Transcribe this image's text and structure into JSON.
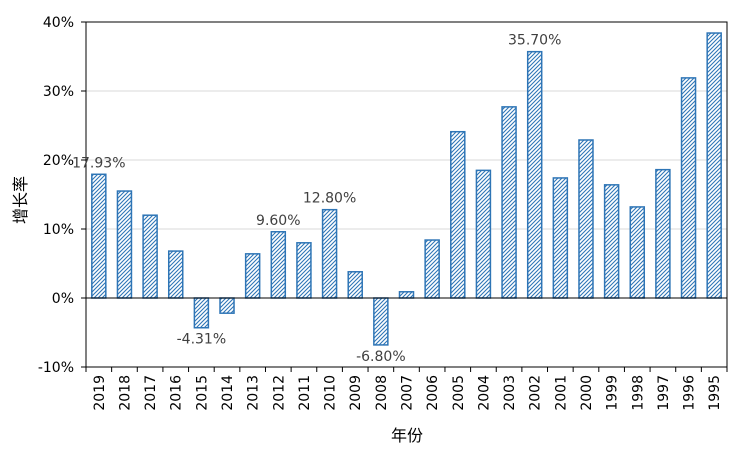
{
  "chart_data": {
    "type": "bar",
    "xlabel": "年份",
    "ylabel": "增长率",
    "ylim": [
      -10,
      40
    ],
    "yticks": [
      -10,
      0,
      10,
      20,
      30,
      40
    ],
    "ytick_labels": [
      "-10%",
      "0%",
      "10%",
      "20%",
      "30%",
      "40%"
    ],
    "grid": true,
    "categories": [
      "2019",
      "2018",
      "2017",
      "2016",
      "2015",
      "2014",
      "2013",
      "2012",
      "2011",
      "2010",
      "2009",
      "2008",
      "2007",
      "2006",
      "2005",
      "2004",
      "2003",
      "2002",
      "2001",
      "2000",
      "1999",
      "1998",
      "1997",
      "1996",
      "1995"
    ],
    "values": [
      17.93,
      15.5,
      12.0,
      6.8,
      -4.31,
      -2.2,
      6.4,
      9.6,
      8.0,
      12.8,
      3.8,
      -6.8,
      0.9,
      8.4,
      24.1,
      18.5,
      27.7,
      35.7,
      17.4,
      22.9,
      16.4,
      13.2,
      18.6,
      31.9,
      38.4
    ],
    "data_labels": [
      {
        "category": "2019",
        "text": "17.93%"
      },
      {
        "category": "2015",
        "text": "-4.31%"
      },
      {
        "category": "2012",
        "text": "9.60%"
      },
      {
        "category": "2010",
        "text": "12.80%"
      },
      {
        "category": "2008",
        "text": "-6.80%"
      },
      {
        "category": "2002",
        "text": "35.70%"
      }
    ],
    "colors": {
      "bar": "#2E75B6",
      "grid": "#d9d9d9",
      "axis": "#000000",
      "text": "#404040"
    }
  }
}
